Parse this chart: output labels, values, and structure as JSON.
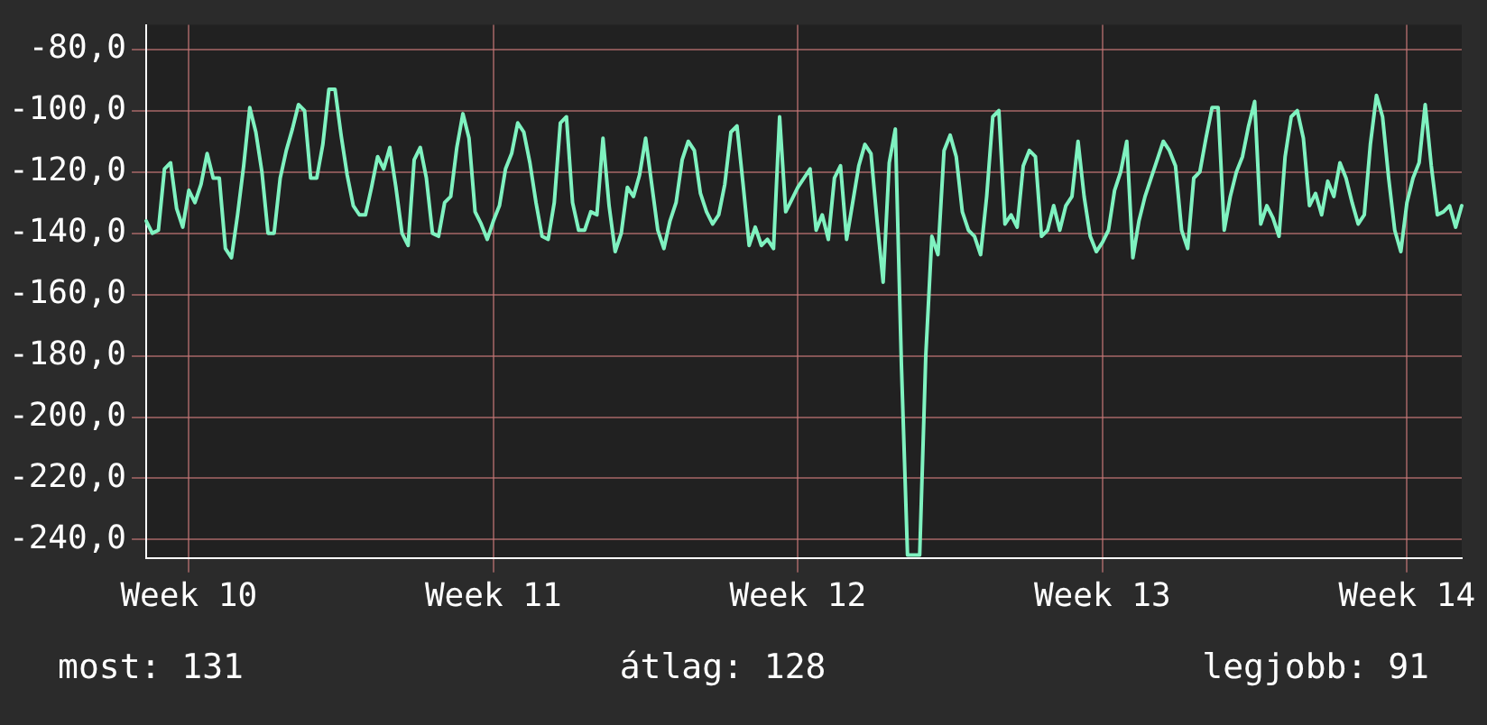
{
  "chart_data": {
    "type": "line",
    "categories": [
      null,
      null,
      null,
      null,
      null,
      null,
      null,
      "Week 10",
      null,
      null,
      null,
      null,
      null,
      null,
      null,
      null,
      null,
      null,
      null,
      null,
      null,
      null,
      null,
      null,
      null,
      null,
      null,
      null,
      null,
      null,
      null,
      null,
      null,
      null,
      null,
      null,
      null,
      null,
      null,
      null,
      null,
      null,
      null,
      null,
      null,
      null,
      null,
      null,
      null,
      null,
      null,
      null,
      null,
      null,
      null,
      null,
      null,
      "Week 11",
      null,
      null,
      null,
      null,
      null,
      null,
      null,
      null,
      null,
      null,
      null,
      null,
      null,
      null,
      null,
      null,
      null,
      null,
      null,
      null,
      null,
      null,
      null,
      null,
      null,
      null,
      null,
      null,
      null,
      null,
      null,
      null,
      null,
      null,
      null,
      null,
      null,
      null,
      null,
      null,
      null,
      null,
      null,
      null,
      null,
      null,
      null,
      null,
      null,
      "Week 12",
      null,
      null,
      null,
      null,
      null,
      null,
      null,
      null,
      null,
      null,
      null,
      null,
      null,
      null,
      null,
      null,
      null,
      null,
      null,
      null,
      null,
      null,
      null,
      null,
      null,
      null,
      null,
      null,
      null,
      null,
      null,
      null,
      null,
      null,
      null,
      null,
      null,
      null,
      null,
      null,
      null,
      null,
      null,
      null,
      null,
      null,
      null,
      null,
      null,
      "Week 13",
      null,
      null,
      null,
      null,
      null,
      null,
      null,
      null,
      null,
      null,
      null,
      null,
      null,
      null,
      null,
      null,
      null,
      null,
      null,
      null,
      null,
      null,
      null,
      null,
      null,
      null,
      null,
      null,
      null,
      null,
      null,
      null,
      null,
      null,
      null,
      null,
      null,
      null,
      null,
      null,
      null,
      null,
      null,
      null,
      null,
      null,
      null,
      null,
      null,
      "Week 14",
      null,
      null,
      null,
      null,
      null,
      null,
      null,
      null,
      null
    ],
    "series": [
      {
        "color": "#7ff2c0",
        "values": [
          -136,
          -140,
          -139,
          -119,
          -117,
          -132,
          -138,
          -126,
          -130,
          -124,
          -114,
          -122,
          -122,
          -145,
          -148,
          -134,
          -118,
          -99,
          -107,
          -120,
          -140,
          -140,
          -122,
          -113,
          -106,
          -98,
          -100,
          -122,
          -122,
          -111,
          -93,
          -93,
          -108,
          -121,
          -131,
          -134,
          -134,
          -125,
          -115,
          -119,
          -112,
          -125,
          -140,
          -144,
          -116,
          -112,
          -122,
          -140,
          -141,
          -130,
          -128,
          -112,
          -101,
          -109,
          -133,
          -137,
          -142,
          -136,
          -131,
          -119,
          -114,
          -104,
          -107,
          -117,
          -130,
          -141,
          -142,
          -130,
          -104,
          -102,
          -130,
          -139,
          -139,
          -133,
          -134,
          -109,
          -131,
          -146,
          -140,
          -125,
          -128,
          -121,
          -109,
          -124,
          -139,
          -145,
          -136,
          -130,
          -116,
          -110,
          -113,
          -127,
          -133,
          -137,
          -134,
          -124,
          -107,
          -105,
          -124,
          -144,
          -138,
          -144,
          -142,
          -145,
          -102,
          -133,
          -129,
          -125,
          -122,
          -119,
          -139,
          -134,
          -142,
          -122,
          -118,
          -142,
          -130,
          -118,
          -111,
          -114,
          -136,
          -156,
          -117,
          -106,
          -183,
          -245,
          -245,
          -245,
          -180,
          -141,
          -147,
          -113,
          -108,
          -115,
          -133,
          -139,
          -141,
          -147,
          -128,
          -102,
          -100,
          -137,
          -134,
          -138,
          -118,
          -113,
          -115,
          -141,
          -139,
          -131,
          -139,
          -131,
          -128,
          -110,
          -128,
          -141,
          -146,
          -143,
          -139,
          -126,
          -120,
          -110,
          -148,
          -136,
          -128,
          -122,
          -116,
          -110,
          -113,
          -118,
          -139,
          -145,
          -122,
          -120,
          -109,
          -99,
          -99,
          -139,
          -128,
          -120,
          -115,
          -105,
          -97,
          -137,
          -131,
          -135,
          -141,
          -115,
          -102,
          -100,
          -109,
          -131,
          -127,
          -134,
          -123,
          -128,
          -117,
          -122,
          -130,
          -137,
          -134,
          -111,
          -95,
          -102,
          -122,
          -139,
          -146,
          -130,
          -122,
          -117,
          -98,
          -118,
          -134,
          -133,
          -131,
          -138,
          -131
        ]
      }
    ],
    "ylim": [
      -246,
      -72
    ],
    "yticks": [
      {
        "value": -80,
        "label": "-80,0"
      },
      {
        "value": -100,
        "label": "-100,0"
      },
      {
        "value": -120,
        "label": "-120,0"
      },
      {
        "value": -140,
        "label": "-140,0"
      },
      {
        "value": -160,
        "label": "-160,0"
      },
      {
        "value": -180,
        "label": "-180,0"
      },
      {
        "value": -200,
        "label": "-200,0"
      },
      {
        "value": -220,
        "label": "-220,0"
      },
      {
        "value": -240,
        "label": "-240,0"
      }
    ],
    "grid": true,
    "marker": "none",
    "line_style": "solid",
    "annotations": [
      "most: 131",
      "átlag: 128",
      "legjobb: 91"
    ]
  }
}
